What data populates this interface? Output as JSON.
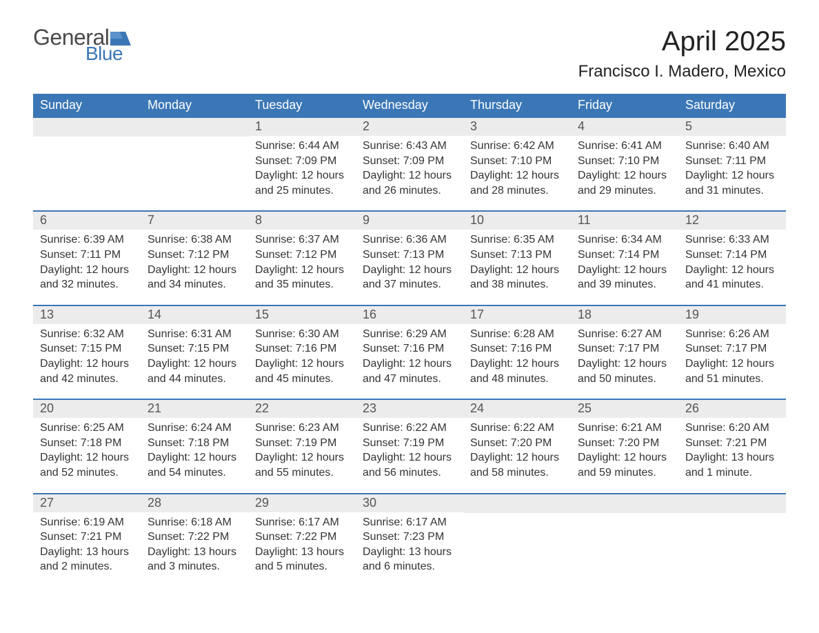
{
  "logo": {
    "word1": "General",
    "word2": "Blue",
    "word1_color": "#4a4a4a",
    "word2_color": "#3b77b6",
    "flag_color": "#3b77b6"
  },
  "title": "April 2025",
  "location": "Francisco I. Madero, Mexico",
  "colors": {
    "header_bg": "#3b77b6",
    "header_text": "#ffffff",
    "daynum_bg": "#ececec",
    "daynum_text": "#555555",
    "body_text": "#333333",
    "week_divider": "#3b77b6",
    "page_bg": "#ffffff"
  },
  "typography": {
    "title_fontsize": 40,
    "location_fontsize": 24,
    "dayheader_fontsize": 18,
    "daynum_fontsize": 18,
    "body_fontsize": 16,
    "font_family": "Segoe UI"
  },
  "day_headers": [
    "Sunday",
    "Monday",
    "Tuesday",
    "Wednesday",
    "Thursday",
    "Friday",
    "Saturday"
  ],
  "weeks": [
    [
      {
        "num": "",
        "sunrise": "",
        "sunset": "",
        "daylight1": "",
        "daylight2": ""
      },
      {
        "num": "",
        "sunrise": "",
        "sunset": "",
        "daylight1": "",
        "daylight2": ""
      },
      {
        "num": "1",
        "sunrise": "Sunrise: 6:44 AM",
        "sunset": "Sunset: 7:09 PM",
        "daylight1": "Daylight: 12 hours",
        "daylight2": "and 25 minutes."
      },
      {
        "num": "2",
        "sunrise": "Sunrise: 6:43 AM",
        "sunset": "Sunset: 7:09 PM",
        "daylight1": "Daylight: 12 hours",
        "daylight2": "and 26 minutes."
      },
      {
        "num": "3",
        "sunrise": "Sunrise: 6:42 AM",
        "sunset": "Sunset: 7:10 PM",
        "daylight1": "Daylight: 12 hours",
        "daylight2": "and 28 minutes."
      },
      {
        "num": "4",
        "sunrise": "Sunrise: 6:41 AM",
        "sunset": "Sunset: 7:10 PM",
        "daylight1": "Daylight: 12 hours",
        "daylight2": "and 29 minutes."
      },
      {
        "num": "5",
        "sunrise": "Sunrise: 6:40 AM",
        "sunset": "Sunset: 7:11 PM",
        "daylight1": "Daylight: 12 hours",
        "daylight2": "and 31 minutes."
      }
    ],
    [
      {
        "num": "6",
        "sunrise": "Sunrise: 6:39 AM",
        "sunset": "Sunset: 7:11 PM",
        "daylight1": "Daylight: 12 hours",
        "daylight2": "and 32 minutes."
      },
      {
        "num": "7",
        "sunrise": "Sunrise: 6:38 AM",
        "sunset": "Sunset: 7:12 PM",
        "daylight1": "Daylight: 12 hours",
        "daylight2": "and 34 minutes."
      },
      {
        "num": "8",
        "sunrise": "Sunrise: 6:37 AM",
        "sunset": "Sunset: 7:12 PM",
        "daylight1": "Daylight: 12 hours",
        "daylight2": "and 35 minutes."
      },
      {
        "num": "9",
        "sunrise": "Sunrise: 6:36 AM",
        "sunset": "Sunset: 7:13 PM",
        "daylight1": "Daylight: 12 hours",
        "daylight2": "and 37 minutes."
      },
      {
        "num": "10",
        "sunrise": "Sunrise: 6:35 AM",
        "sunset": "Sunset: 7:13 PM",
        "daylight1": "Daylight: 12 hours",
        "daylight2": "and 38 minutes."
      },
      {
        "num": "11",
        "sunrise": "Sunrise: 6:34 AM",
        "sunset": "Sunset: 7:14 PM",
        "daylight1": "Daylight: 12 hours",
        "daylight2": "and 39 minutes."
      },
      {
        "num": "12",
        "sunrise": "Sunrise: 6:33 AM",
        "sunset": "Sunset: 7:14 PM",
        "daylight1": "Daylight: 12 hours",
        "daylight2": "and 41 minutes."
      }
    ],
    [
      {
        "num": "13",
        "sunrise": "Sunrise: 6:32 AM",
        "sunset": "Sunset: 7:15 PM",
        "daylight1": "Daylight: 12 hours",
        "daylight2": "and 42 minutes."
      },
      {
        "num": "14",
        "sunrise": "Sunrise: 6:31 AM",
        "sunset": "Sunset: 7:15 PM",
        "daylight1": "Daylight: 12 hours",
        "daylight2": "and 44 minutes."
      },
      {
        "num": "15",
        "sunrise": "Sunrise: 6:30 AM",
        "sunset": "Sunset: 7:16 PM",
        "daylight1": "Daylight: 12 hours",
        "daylight2": "and 45 minutes."
      },
      {
        "num": "16",
        "sunrise": "Sunrise: 6:29 AM",
        "sunset": "Sunset: 7:16 PM",
        "daylight1": "Daylight: 12 hours",
        "daylight2": "and 47 minutes."
      },
      {
        "num": "17",
        "sunrise": "Sunrise: 6:28 AM",
        "sunset": "Sunset: 7:16 PM",
        "daylight1": "Daylight: 12 hours",
        "daylight2": "and 48 minutes."
      },
      {
        "num": "18",
        "sunrise": "Sunrise: 6:27 AM",
        "sunset": "Sunset: 7:17 PM",
        "daylight1": "Daylight: 12 hours",
        "daylight2": "and 50 minutes."
      },
      {
        "num": "19",
        "sunrise": "Sunrise: 6:26 AM",
        "sunset": "Sunset: 7:17 PM",
        "daylight1": "Daylight: 12 hours",
        "daylight2": "and 51 minutes."
      }
    ],
    [
      {
        "num": "20",
        "sunrise": "Sunrise: 6:25 AM",
        "sunset": "Sunset: 7:18 PM",
        "daylight1": "Daylight: 12 hours",
        "daylight2": "and 52 minutes."
      },
      {
        "num": "21",
        "sunrise": "Sunrise: 6:24 AM",
        "sunset": "Sunset: 7:18 PM",
        "daylight1": "Daylight: 12 hours",
        "daylight2": "and 54 minutes."
      },
      {
        "num": "22",
        "sunrise": "Sunrise: 6:23 AM",
        "sunset": "Sunset: 7:19 PM",
        "daylight1": "Daylight: 12 hours",
        "daylight2": "and 55 minutes."
      },
      {
        "num": "23",
        "sunrise": "Sunrise: 6:22 AM",
        "sunset": "Sunset: 7:19 PM",
        "daylight1": "Daylight: 12 hours",
        "daylight2": "and 56 minutes."
      },
      {
        "num": "24",
        "sunrise": "Sunrise: 6:22 AM",
        "sunset": "Sunset: 7:20 PM",
        "daylight1": "Daylight: 12 hours",
        "daylight2": "and 58 minutes."
      },
      {
        "num": "25",
        "sunrise": "Sunrise: 6:21 AM",
        "sunset": "Sunset: 7:20 PM",
        "daylight1": "Daylight: 12 hours",
        "daylight2": "and 59 minutes."
      },
      {
        "num": "26",
        "sunrise": "Sunrise: 6:20 AM",
        "sunset": "Sunset: 7:21 PM",
        "daylight1": "Daylight: 13 hours",
        "daylight2": "and 1 minute."
      }
    ],
    [
      {
        "num": "27",
        "sunrise": "Sunrise: 6:19 AM",
        "sunset": "Sunset: 7:21 PM",
        "daylight1": "Daylight: 13 hours",
        "daylight2": "and 2 minutes."
      },
      {
        "num": "28",
        "sunrise": "Sunrise: 6:18 AM",
        "sunset": "Sunset: 7:22 PM",
        "daylight1": "Daylight: 13 hours",
        "daylight2": "and 3 minutes."
      },
      {
        "num": "29",
        "sunrise": "Sunrise: 6:17 AM",
        "sunset": "Sunset: 7:22 PM",
        "daylight1": "Daylight: 13 hours",
        "daylight2": "and 5 minutes."
      },
      {
        "num": "30",
        "sunrise": "Sunrise: 6:17 AM",
        "sunset": "Sunset: 7:23 PM",
        "daylight1": "Daylight: 13 hours",
        "daylight2": "and 6 minutes."
      },
      {
        "num": "",
        "sunrise": "",
        "sunset": "",
        "daylight1": "",
        "daylight2": ""
      },
      {
        "num": "",
        "sunrise": "",
        "sunset": "",
        "daylight1": "",
        "daylight2": ""
      },
      {
        "num": "",
        "sunrise": "",
        "sunset": "",
        "daylight1": "",
        "daylight2": ""
      }
    ]
  ]
}
